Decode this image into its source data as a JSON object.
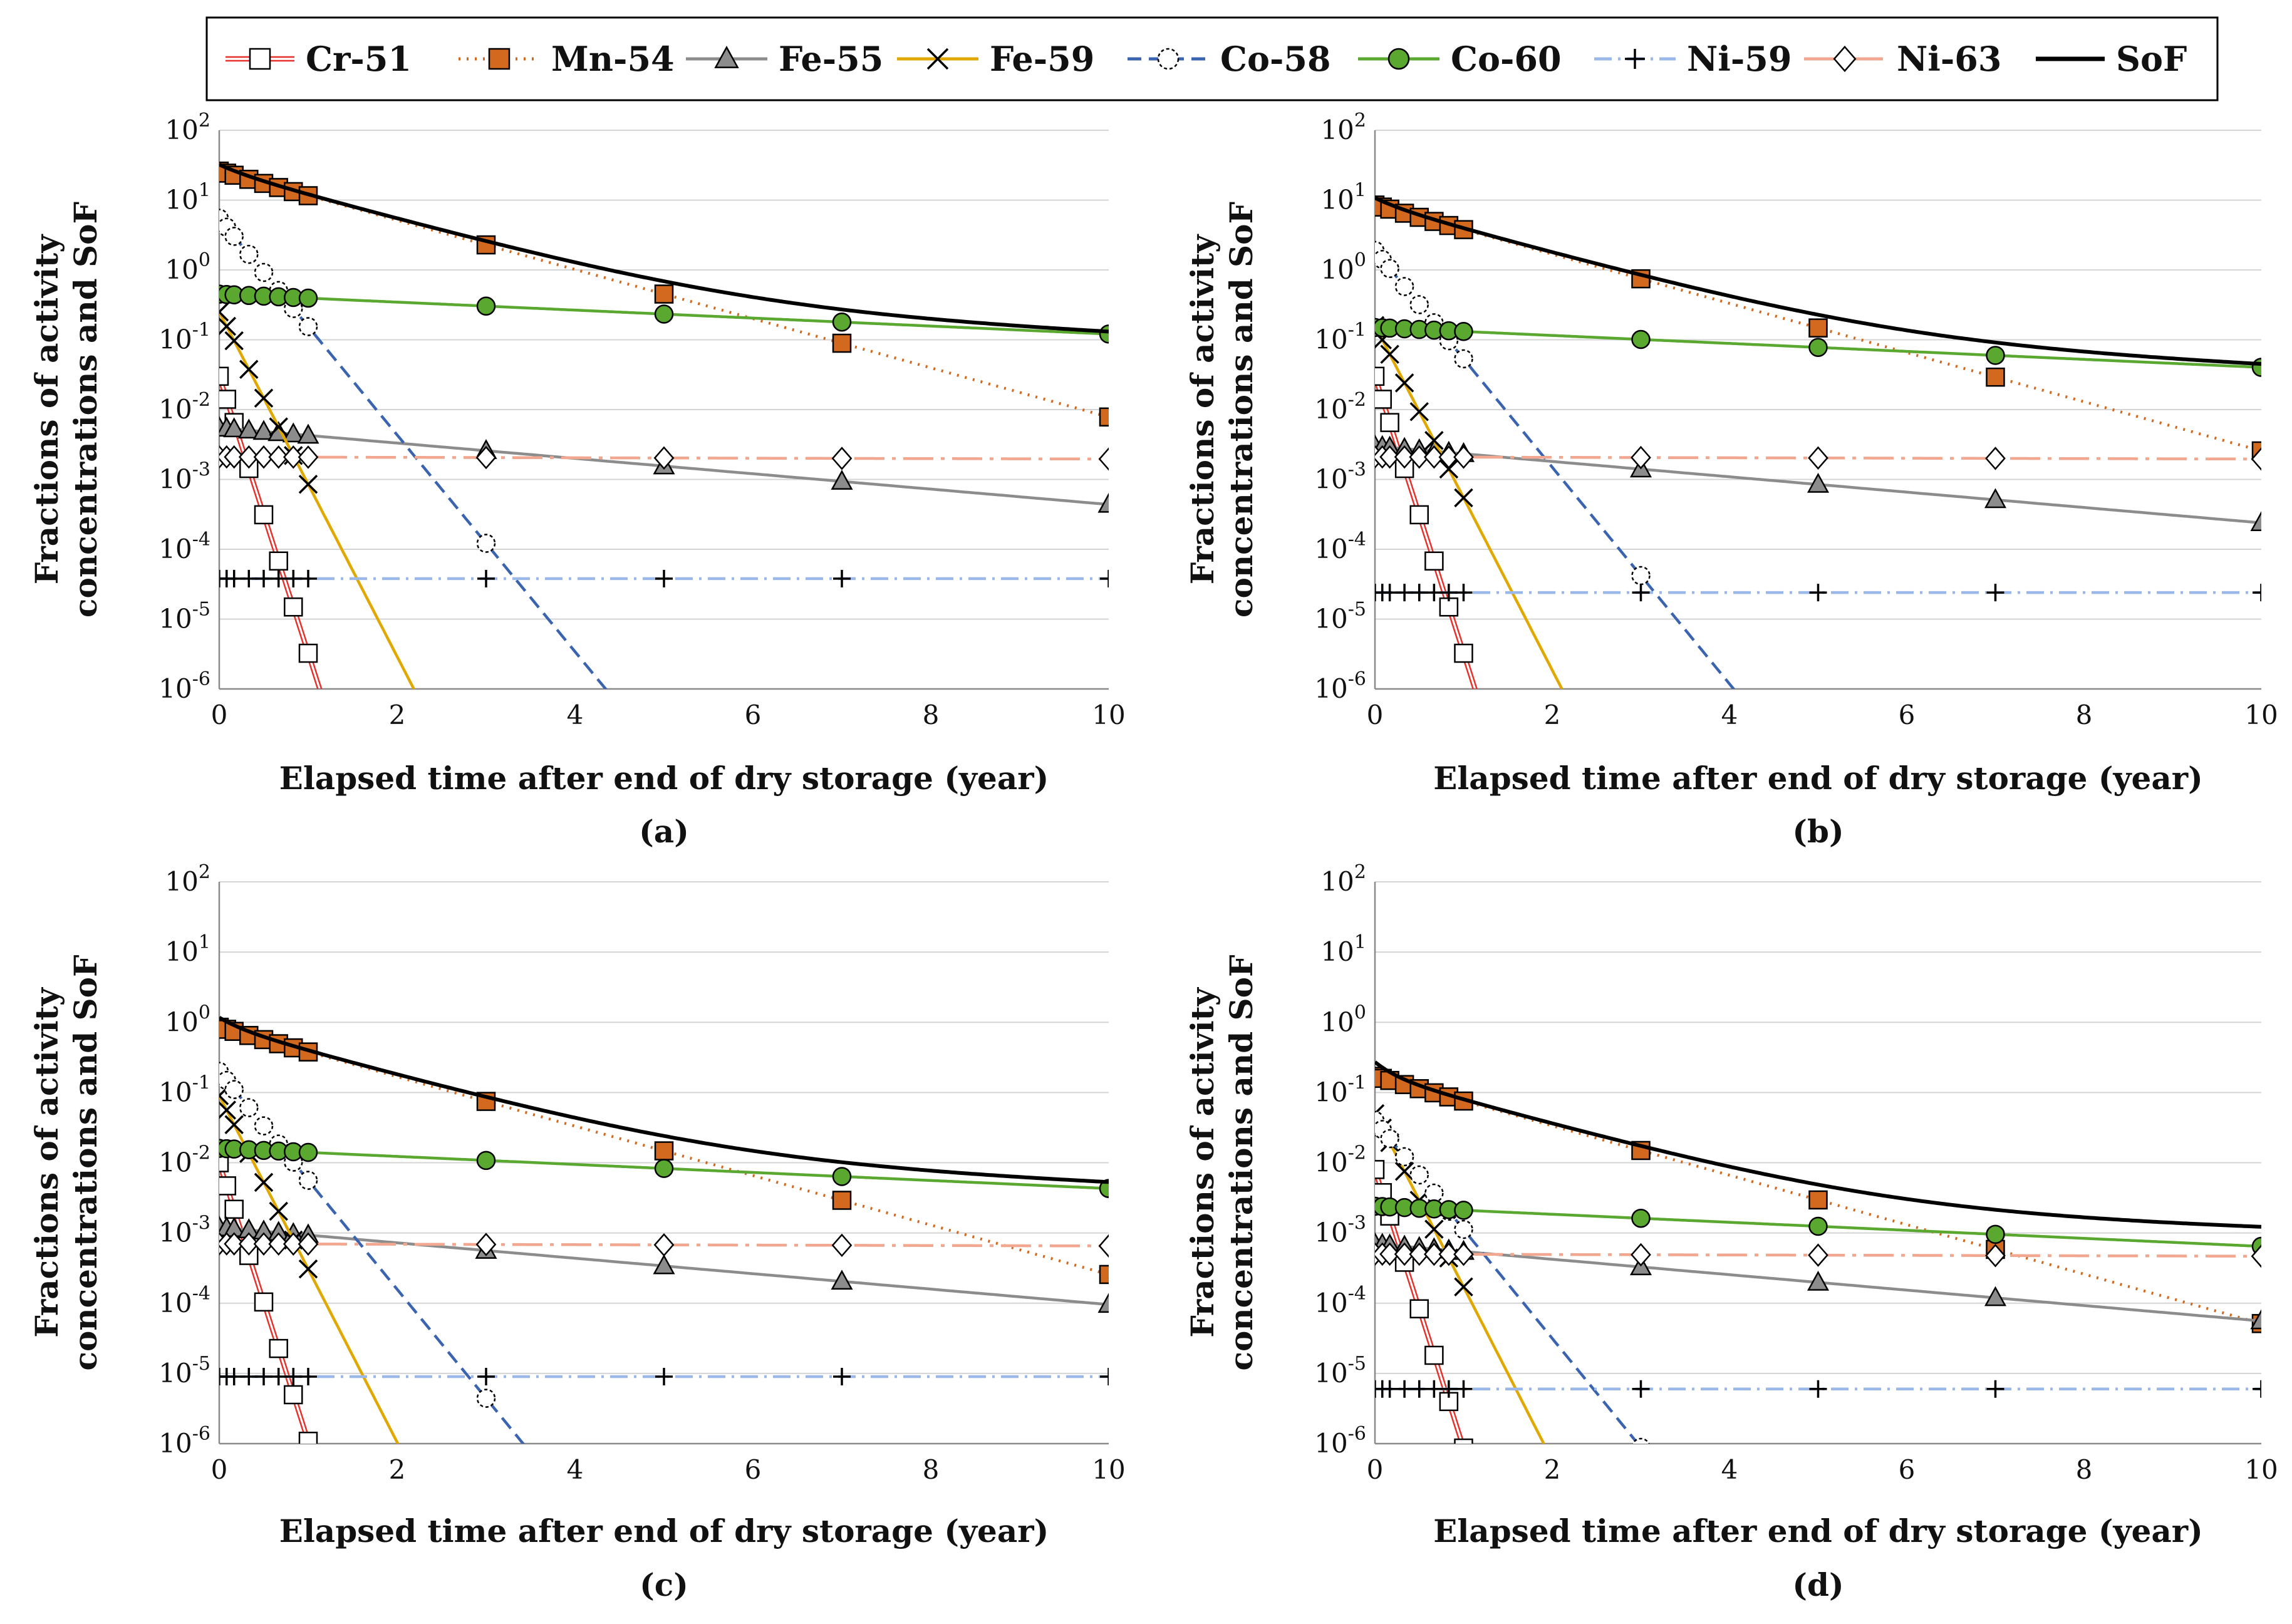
{
  "legend": {
    "entries": [
      {
        "name": "Cr-51",
        "color": "#e8302a",
        "marker": "open-square",
        "dash": "solid-double"
      },
      {
        "name": "Mn-54",
        "color": "#d2691e",
        "marker": "filled-square",
        "dash": "dotted"
      },
      {
        "name": "Fe-55",
        "color": "#8c8c8c",
        "marker": "filled-triangle",
        "dash": "solid"
      },
      {
        "name": "Fe-59",
        "color": "#e0a800",
        "marker": "cross-x",
        "dash": "solid"
      },
      {
        "name": "Co-58",
        "color": "#3a64b0",
        "marker": "open-dashed-circle",
        "dash": "dashed"
      },
      {
        "name": "Co-60",
        "color": "#5aa830",
        "marker": "filled-circle",
        "dash": "solid"
      },
      {
        "name": "Ni-59",
        "color": "#9ab8e8",
        "marker": "plus",
        "dash": "dashdot"
      },
      {
        "name": "Ni-63",
        "color": "#f2a890",
        "marker": "open-diamond",
        "dash": "longdash-dot"
      },
      {
        "name": "SoF",
        "color": "#000000",
        "marker": "none",
        "dash": "solid"
      }
    ]
  },
  "chart_data": [
    {
      "type": "line",
      "panel": "(a)",
      "xlabel": "Elapsed time after end of dry storage (year)",
      "ylabel": "Fractions of activity concentrations and SoF",
      "xlim": [
        0,
        10
      ],
      "ylim_log10": [
        -6,
        2
      ],
      "xticks": [
        "0",
        "2",
        "4",
        "6",
        "8",
        "10"
      ],
      "yticks": [
        {
          "base": "10",
          "exp": "-6"
        },
        {
          "base": "10",
          "exp": "-5"
        },
        {
          "base": "10",
          "exp": "-4"
        },
        {
          "base": "10",
          "exp": "-3"
        },
        {
          "base": "10",
          "exp": "-2"
        },
        {
          "base": "10",
          "exp": "-1"
        },
        {
          "base": "10",
          "exp": "0"
        },
        {
          "base": "10",
          "exp": "1"
        },
        {
          "base": "10",
          "exp": "2"
        }
      ],
      "markers_x": [
        0,
        0.083,
        0.167,
        0.333,
        0.5,
        0.667,
        0.833,
        1,
        3,
        5,
        7,
        10
      ],
      "series": [
        {
          "name": "Cr-51",
          "y0": 0.03,
          "halflife": 0.0759
        },
        {
          "name": "Mn-54",
          "y0": 26,
          "halflife": 0.855
        },
        {
          "name": "Fe-55",
          "y0": 0.0055,
          "halflife": 2.74
        },
        {
          "name": "Fe-59",
          "y0": 0.25,
          "halflife": 0.122
        },
        {
          "name": "Co-58",
          "y0": 5.5,
          "halflife": 0.194
        },
        {
          "name": "Co-60",
          "y0": 0.45,
          "halflife": 5.27
        },
        {
          "name": "Ni-59",
          "y0": 3.8e-05,
          "halflife": 76000
        },
        {
          "name": "Ni-63",
          "y0": 0.0021,
          "halflife": 100
        }
      ]
    },
    {
      "type": "line",
      "panel": "(b)",
      "xlabel": "Elapsed time after end of dry storage (year)",
      "ylabel": "Fractions of activity concentrations and SoF",
      "xlim": [
        0,
        10
      ],
      "ylim_log10": [
        -6,
        2
      ],
      "xticks": [
        "0",
        "2",
        "4",
        "6",
        "8",
        "10"
      ],
      "yticks": [
        {
          "base": "10",
          "exp": "-6"
        },
        {
          "base": "10",
          "exp": "-5"
        },
        {
          "base": "10",
          "exp": "-4"
        },
        {
          "base": "10",
          "exp": "-3"
        },
        {
          "base": "10",
          "exp": "-2"
        },
        {
          "base": "10",
          "exp": "-1"
        },
        {
          "base": "10",
          "exp": "0"
        },
        {
          "base": "10",
          "exp": "1"
        },
        {
          "base": "10",
          "exp": "2"
        }
      ],
      "markers_x": [
        0,
        0.083,
        0.167,
        0.333,
        0.5,
        0.667,
        0.833,
        1,
        3,
        5,
        7,
        10
      ],
      "series": [
        {
          "name": "Cr-51",
          "y0": 0.03,
          "halflife": 0.0759
        },
        {
          "name": "Mn-54",
          "y0": 8.5,
          "halflife": 0.855
        },
        {
          "name": "Fe-55",
          "y0": 0.003,
          "halflife": 2.74
        },
        {
          "name": "Fe-59",
          "y0": 0.16,
          "halflife": 0.122
        },
        {
          "name": "Co-58",
          "y0": 1.9,
          "halflife": 0.194
        },
        {
          "name": "Co-60",
          "y0": 0.15,
          "halflife": 5.27
        },
        {
          "name": "Ni-59",
          "y0": 2.4e-05,
          "halflife": 76000
        },
        {
          "name": "Ni-63",
          "y0": 0.0021,
          "halflife": 100
        }
      ]
    },
    {
      "type": "line",
      "panel": "(c)",
      "xlabel": "Elapsed time after end of dry storage (year)",
      "ylabel": "Fractions of activity concentrations and SoF",
      "xlim": [
        0,
        10
      ],
      "ylim_log10": [
        -6,
        2
      ],
      "xticks": [
        "0",
        "2",
        "4",
        "6",
        "8",
        "10"
      ],
      "yticks": [
        {
          "base": "10",
          "exp": "-6"
        },
        {
          "base": "10",
          "exp": "-5"
        },
        {
          "base": "10",
          "exp": "-4"
        },
        {
          "base": "10",
          "exp": "-3"
        },
        {
          "base": "10",
          "exp": "-2"
        },
        {
          "base": "10",
          "exp": "-1"
        },
        {
          "base": "10",
          "exp": "0"
        },
        {
          "base": "10",
          "exp": "1"
        },
        {
          "base": "10",
          "exp": "2"
        }
      ],
      "markers_x": [
        0,
        0.083,
        0.167,
        0.333,
        0.5,
        0.667,
        0.833,
        1,
        3,
        5,
        7,
        10
      ],
      "series": [
        {
          "name": "Cr-51",
          "y0": 0.01,
          "halflife": 0.0759
        },
        {
          "name": "Mn-54",
          "y0": 0.85,
          "halflife": 0.855
        },
        {
          "name": "Fe-55",
          "y0": 0.0012,
          "halflife": 2.74
        },
        {
          "name": "Fe-59",
          "y0": 0.09,
          "halflife": 0.122
        },
        {
          "name": "Co-58",
          "y0": 0.2,
          "halflife": 0.194
        },
        {
          "name": "Co-60",
          "y0": 0.016,
          "halflife": 5.27
        },
        {
          "name": "Ni-59",
          "y0": 9e-06,
          "halflife": 76000
        },
        {
          "name": "Ni-63",
          "y0": 0.0007,
          "halflife": 100
        }
      ]
    },
    {
      "type": "line",
      "panel": "(d)",
      "xlabel": "Elapsed time after end of dry storage (year)",
      "ylabel": "Fractions of activity concentrations and SoF",
      "xlim": [
        0,
        10
      ],
      "ylim_log10": [
        -6,
        2
      ],
      "xticks": [
        "0",
        "2",
        "4",
        "6",
        "8",
        "10"
      ],
      "yticks": [
        {
          "base": "10",
          "exp": "-6"
        },
        {
          "base": "10",
          "exp": "-5"
        },
        {
          "base": "10",
          "exp": "-4"
        },
        {
          "base": "10",
          "exp": "-3"
        },
        {
          "base": "10",
          "exp": "-2"
        },
        {
          "base": "10",
          "exp": "-1"
        },
        {
          "base": "10",
          "exp": "0"
        },
        {
          "base": "10",
          "exp": "1"
        },
        {
          "base": "10",
          "exp": "2"
        }
      ],
      "markers_x": [
        0,
        0.083,
        0.167,
        0.333,
        0.5,
        0.667,
        0.833,
        1,
        3,
        5,
        7,
        10
      ],
      "series": [
        {
          "name": "Cr-51",
          "y0": 0.008,
          "halflife": 0.0759
        },
        {
          "name": "Mn-54",
          "y0": 0.17,
          "halflife": 0.855
        },
        {
          "name": "Fe-55",
          "y0": 0.0007,
          "halflife": 2.74
        },
        {
          "name": "Fe-59",
          "y0": 0.05,
          "halflife": 0.122
        },
        {
          "name": "Co-58",
          "y0": 0.04,
          "halflife": 0.194
        },
        {
          "name": "Co-60",
          "y0": 0.0024,
          "halflife": 5.27
        },
        {
          "name": "Ni-59",
          "y0": 6e-06,
          "halflife": 76000
        },
        {
          "name": "Ni-63",
          "y0": 0.0005,
          "halflife": 100
        }
      ]
    }
  ]
}
